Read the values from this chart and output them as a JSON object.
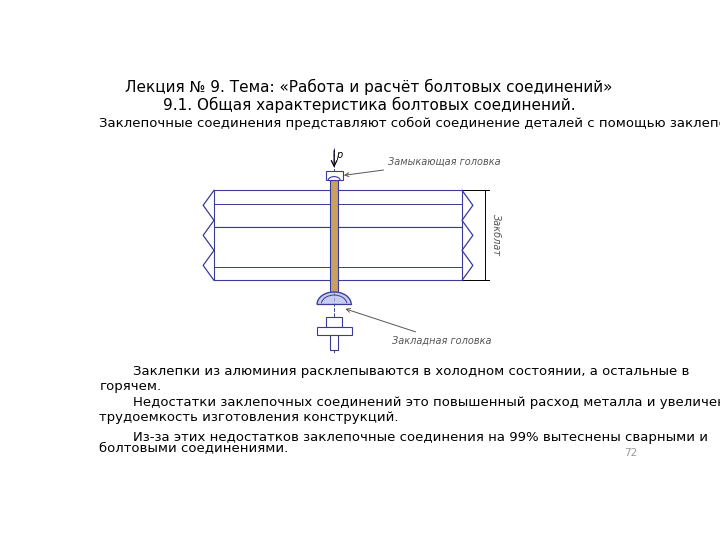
{
  "title": "Лекция № 9. Тема: «Работа и расчёт болтовых соединений»",
  "subtitle": "9.1. Общая характеристика болтовых соединений.",
  "intro_text": "Заклепочные соединения представляют собой соединение деталей с помощью заклепок.",
  "para1": "        Заклепки из алюминия расклепываются в холодном состоянии, а остальные в\nгорячем.",
  "para2": "        Недостатки заклепочных соединений это повышенный расход металла и увеличенная\nтрудоемкость изготовления конструкций.",
  "para3": "        Из-за этих недостатков заклепочные соединения на 99% вытеснены сварными и",
  "para4": "болтовыми соединениями.",
  "page_num": "72",
  "label_closing": "Замыкающая головка",
  "label_dim": "Закблат",
  "label_insert": "Закладная головка",
  "bg_color": "#ffffff",
  "diagram_color": "#3a3a9a",
  "shaft_color": "#c8a060",
  "text_color": "#000000",
  "label_color": "#555555",
  "title_fontsize": 11,
  "body_fontsize": 9.5,
  "label_fontsize": 7
}
